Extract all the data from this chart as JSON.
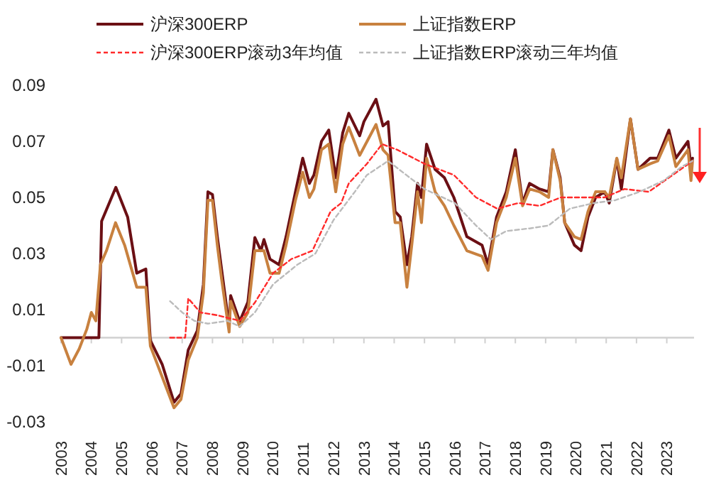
{
  "chart_data": {
    "type": "line",
    "legend": "top",
    "xlim": [
      2003,
      2023.9
    ],
    "xticks": [
      2003,
      2004,
      2005,
      2006,
      2007,
      2008,
      2009,
      2010,
      2011,
      2012,
      2013,
      2014,
      2015,
      2016,
      2017,
      2018,
      2019,
      2020,
      2021,
      2022,
      2023
    ],
    "ylim": [
      -0.03,
      0.09
    ],
    "yticks": [
      -0.03,
      -0.01,
      0.01,
      0.03,
      0.05,
      0.07,
      0.09
    ],
    "series": [
      {
        "name": "沪深300ERP",
        "color": "#6b0f14",
        "line_style": "solid",
        "x": [
          2003,
          2004.25,
          2004.34,
          2004.81,
          2005.2,
          2005.5,
          2005.8,
          2005.95,
          2006.34,
          2006.73,
          2006.96,
          2007.2,
          2007.5,
          2007.7,
          2007.85,
          2008.0,
          2008.16,
          2008.3,
          2008.55,
          2008.6,
          2008.9,
          2009.17,
          2009.4,
          2009.6,
          2009.7,
          2009.9,
          2010.2,
          2010.43,
          2010.74,
          2010.98,
          2011.2,
          2011.35,
          2011.6,
          2011.84,
          2012.07,
          2012.3,
          2012.5,
          2012.86,
          2013.0,
          2013.4,
          2013.63,
          2013.8,
          2014.03,
          2014.2,
          2014.42,
          2014.58,
          2014.77,
          2014.9,
          2015.07,
          2015.35,
          2015.66,
          2015.97,
          2016.4,
          2016.9,
          2017.1,
          2017.38,
          2017.7,
          2018.0,
          2018.24,
          2018.47,
          2018.8,
          2019.1,
          2019.24,
          2019.48,
          2019.63,
          2019.95,
          2020.17,
          2020.4,
          2020.65,
          2020.95,
          2021.1,
          2021.35,
          2021.5,
          2021.8,
          2022.05,
          2022.45,
          2022.7,
          2023.07,
          2023.3,
          2023.7,
          2023.8,
          2023.85
        ],
        "values": [
          0,
          0,
          0.0415,
          0.0536,
          0.043,
          0.023,
          0.0245,
          -0.001,
          -0.0095,
          -0.023,
          -0.02,
          -0.0044,
          0.0025,
          0.019,
          0.052,
          0.051,
          0.036,
          0.0245,
          0.004,
          0.015,
          0.0058,
          0.0127,
          0.0357,
          0.031,
          0.035,
          0.028,
          0.026,
          0.036,
          0.052,
          0.064,
          0.055,
          0.058,
          0.07,
          0.074,
          0.057,
          0.073,
          0.08,
          0.072,
          0.077,
          0.085,
          0.0755,
          0.077,
          0.045,
          0.043,
          0.026,
          0.036,
          0.055,
          0.05,
          0.069,
          0.06,
          0.057,
          0.05,
          0.036,
          0.033,
          0.026,
          0.043,
          0.052,
          0.067,
          0.048,
          0.055,
          0.053,
          0.052,
          0.067,
          0.057,
          0.041,
          0.033,
          0.031,
          0.043,
          0.05,
          0.052,
          0.048,
          0.0637,
          0.053,
          0.078,
          0.06,
          0.064,
          0.064,
          0.074,
          0.064,
          0.07,
          0.061,
          0.064
        ]
      },
      {
        "name": "上证指数ERP",
        "color": "#c8813f",
        "line_style": "solid",
        "x": [
          2003,
          2003.33,
          2003.6,
          2003.85,
          2004.0,
          2004.15,
          2004.3,
          2004.5,
          2004.8,
          2005.1,
          2005.5,
          2005.8,
          2005.95,
          2006.73,
          2006.96,
          2007.2,
          2007.5,
          2007.7,
          2007.85,
          2008.0,
          2008.16,
          2008.3,
          2008.55,
          2008.6,
          2008.9,
          2009.17,
          2009.4,
          2009.7,
          2009.9,
          2010.2,
          2010.43,
          2010.74,
          2010.98,
          2011.2,
          2011.35,
          2011.6,
          2011.84,
          2012.07,
          2012.3,
          2012.5,
          2012.86,
          2013.4,
          2013.63,
          2013.8,
          2014.03,
          2014.2,
          2014.42,
          2014.58,
          2014.77,
          2014.9,
          2015.07,
          2015.35,
          2015.66,
          2015.97,
          2016.4,
          2016.9,
          2017.1,
          2017.38,
          2017.7,
          2018.0,
          2018.24,
          2018.47,
          2018.8,
          2019.1,
          2019.24,
          2019.48,
          2019.63,
          2019.95,
          2020.17,
          2020.4,
          2020.65,
          2020.95,
          2021.1,
          2021.35,
          2021.5,
          2021.8,
          2022.05,
          2022.45,
          2022.7,
          2023.07,
          2023.3,
          2023.7,
          2023.8,
          2023.85
        ],
        "values": [
          0,
          -0.0095,
          -0.004,
          0.003,
          0.009,
          0.006,
          0.026,
          0.031,
          0.041,
          0.033,
          0.018,
          0.018,
          -0.003,
          -0.025,
          -0.022,
          -0.008,
          0,
          0.016,
          0.049,
          0.049,
          0.033,
          0.021,
          0.002,
          0.013,
          0.004,
          0.009,
          0.031,
          0.031,
          0.023,
          0.023,
          0.033,
          0.049,
          0.059,
          0.05,
          0.053,
          0.067,
          0.069,
          0.052,
          0.069,
          0.075,
          0.065,
          0.076,
          0.067,
          0.065,
          0.041,
          0.041,
          0.018,
          0.033,
          0.052,
          0.041,
          0.064,
          0.052,
          0.047,
          0.04,
          0.031,
          0.029,
          0.024,
          0.041,
          0.05,
          0.064,
          0.047,
          0.053,
          0.052,
          0.05,
          0.067,
          0.056,
          0.041,
          0.036,
          0.035,
          0.045,
          0.052,
          0.052,
          0.05,
          0.064,
          0.057,
          0.078,
          0.06,
          0.062,
          0.063,
          0.072,
          0.061,
          0.067,
          0.056,
          0.063
        ]
      },
      {
        "name": "沪深300ERP滚动3年均值",
        "color": "#ff2a2a",
        "line_style": "dashed",
        "x": [
          2006.6,
          2007.1,
          2007.2,
          2007.6,
          2008.16,
          2008.9,
          2009.4,
          2010.0,
          2010.6,
          2011.3,
          2011.9,
          2012.25,
          2012.5,
          2013.1,
          2013.6,
          2014.1,
          2015.0,
          2015.97,
          2016.7,
          2017.4,
          2018.1,
          2018.8,
          2019.5,
          2020.3,
          2020.95,
          2021.6,
          2022.4,
          2023.2,
          2023.85
        ],
        "values": [
          0,
          0,
          0.014,
          0.009,
          0.008,
          0.006,
          0.0125,
          0.023,
          0.028,
          0.031,
          0.045,
          0.048,
          0.055,
          0.062,
          0.069,
          0.067,
          0.062,
          0.058,
          0.05,
          0.046,
          0.048,
          0.047,
          0.05,
          0.05,
          0.05,
          0.053,
          0.052,
          0.058,
          0.063
        ]
      },
      {
        "name": "上证指数ERP滚动三年均值",
        "color": "#bbbbbb",
        "line_style": "dashed",
        "x": [
          2006.6,
          2007.0,
          2007.4,
          2007.85,
          2008.5,
          2008.9,
          2009.4,
          2010.0,
          2010.8,
          2011.4,
          2012.0,
          2012.7,
          2013.1,
          2013.8,
          2014.4,
          2015.0,
          2016.0,
          2016.7,
          2017.2,
          2017.7,
          2018.5,
          2019.1,
          2019.8,
          2020.6,
          2021.3,
          2022.1,
          2022.9,
          2023.5,
          2023.85
        ],
        "values": [
          0.013,
          0.009,
          0.006,
          0.005,
          0.006,
          0.004,
          0.009,
          0.019,
          0.026,
          0.03,
          0.042,
          0.052,
          0.058,
          0.063,
          0.058,
          0.053,
          0.048,
          0.04,
          0.035,
          0.038,
          0.039,
          0.04,
          0.046,
          0.048,
          0.049,
          0.052,
          0.056,
          0.061,
          0.063
        ]
      }
    ]
  }
}
